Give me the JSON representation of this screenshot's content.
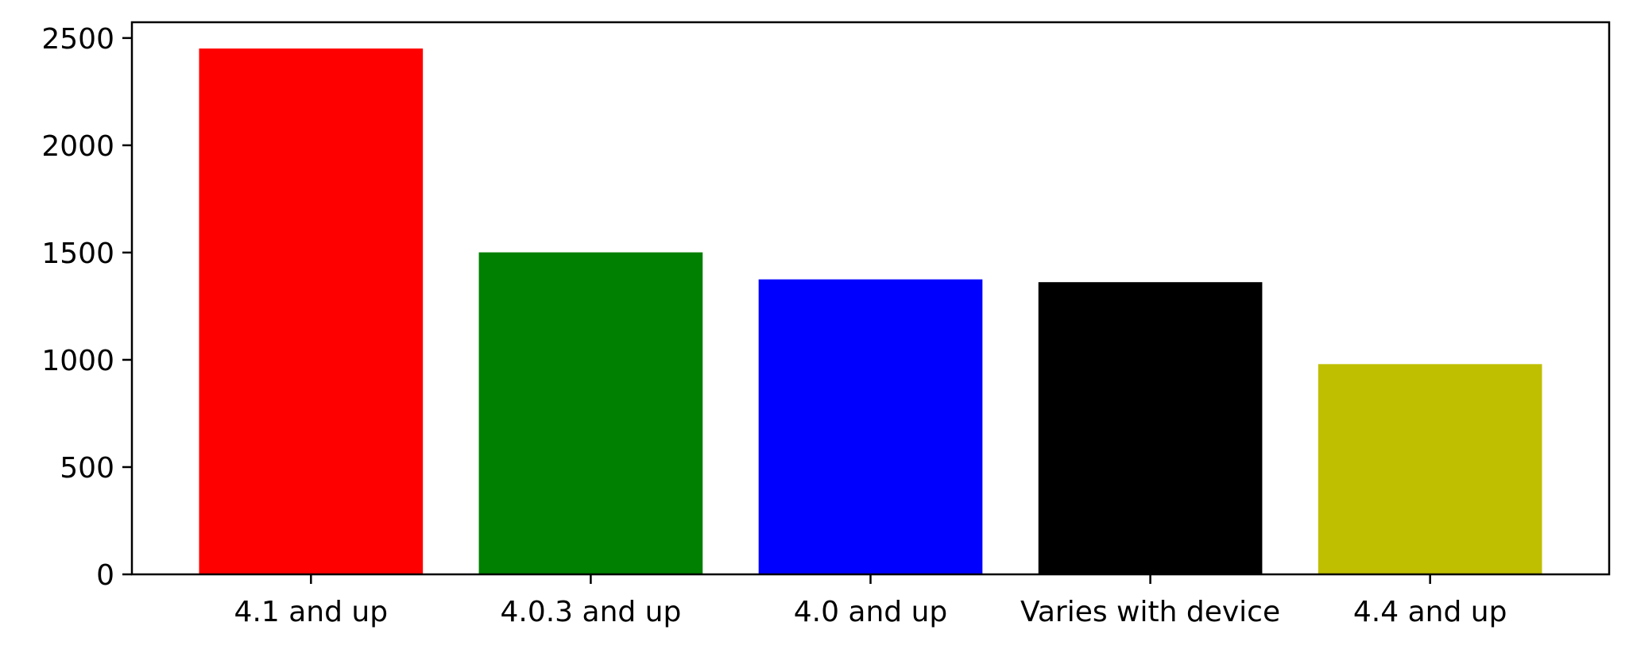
{
  "chart_data": {
    "type": "bar",
    "title": "",
    "xlabel": "",
    "ylabel": "",
    "categories": [
      "4.1 and up",
      "4.0.3 and up",
      "4.0 and up",
      "Varies with device",
      "4.4 and up"
    ],
    "values": [
      2451,
      1501,
      1375,
      1362,
      980
    ],
    "colors": [
      "#ff0000",
      "#008000",
      "#0000ff",
      "#000000",
      "#bfbf00"
    ],
    "ylim": [
      0,
      2573.55
    ],
    "yticks": [
      0,
      500,
      1000,
      1500,
      2000,
      2500
    ],
    "ytick_labels": [
      "0",
      "500",
      "1000",
      "1500",
      "2000",
      "2500"
    ],
    "grid": false,
    "legend": "none"
  }
}
